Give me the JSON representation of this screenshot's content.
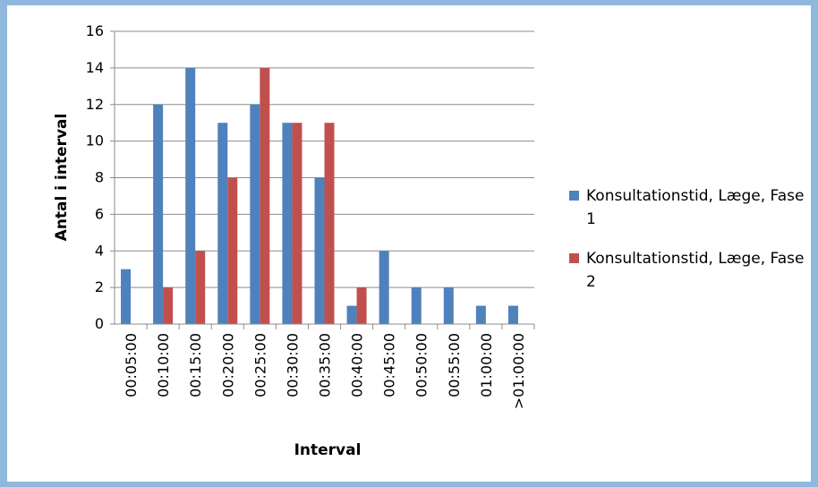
{
  "chart_data": {
    "type": "bar",
    "xlabel": "Interval",
    "ylabel": "Antal i interval",
    "categories": [
      "00:05:00",
      "00:10:00",
      "00:15:00",
      "00:20:00",
      "00:25:00",
      "00:30:00",
      "00:35:00",
      "00:40:00",
      "00:45:00",
      "00:50:00",
      "00:55:00",
      "01:00:00",
      ">01:00:00"
    ],
    "series": [
      {
        "name": "Konsultationstid, Læge, Fase 1",
        "color": "#4f81bd",
        "values": [
          3,
          12,
          14,
          11,
          12,
          11,
          8,
          1,
          4,
          2,
          2,
          1,
          1
        ]
      },
      {
        "name": "Konsultationstid, Læge, Fase 2",
        "color": "#c0504d",
        "values": [
          0,
          2,
          4,
          8,
          14,
          11,
          11,
          2,
          0,
          0,
          0,
          0,
          0
        ]
      }
    ],
    "ylim": [
      0,
      16
    ],
    "yticks": [
      0,
      2,
      4,
      6,
      8,
      10,
      12,
      14,
      16
    ],
    "grid": true,
    "legend": "right"
  }
}
